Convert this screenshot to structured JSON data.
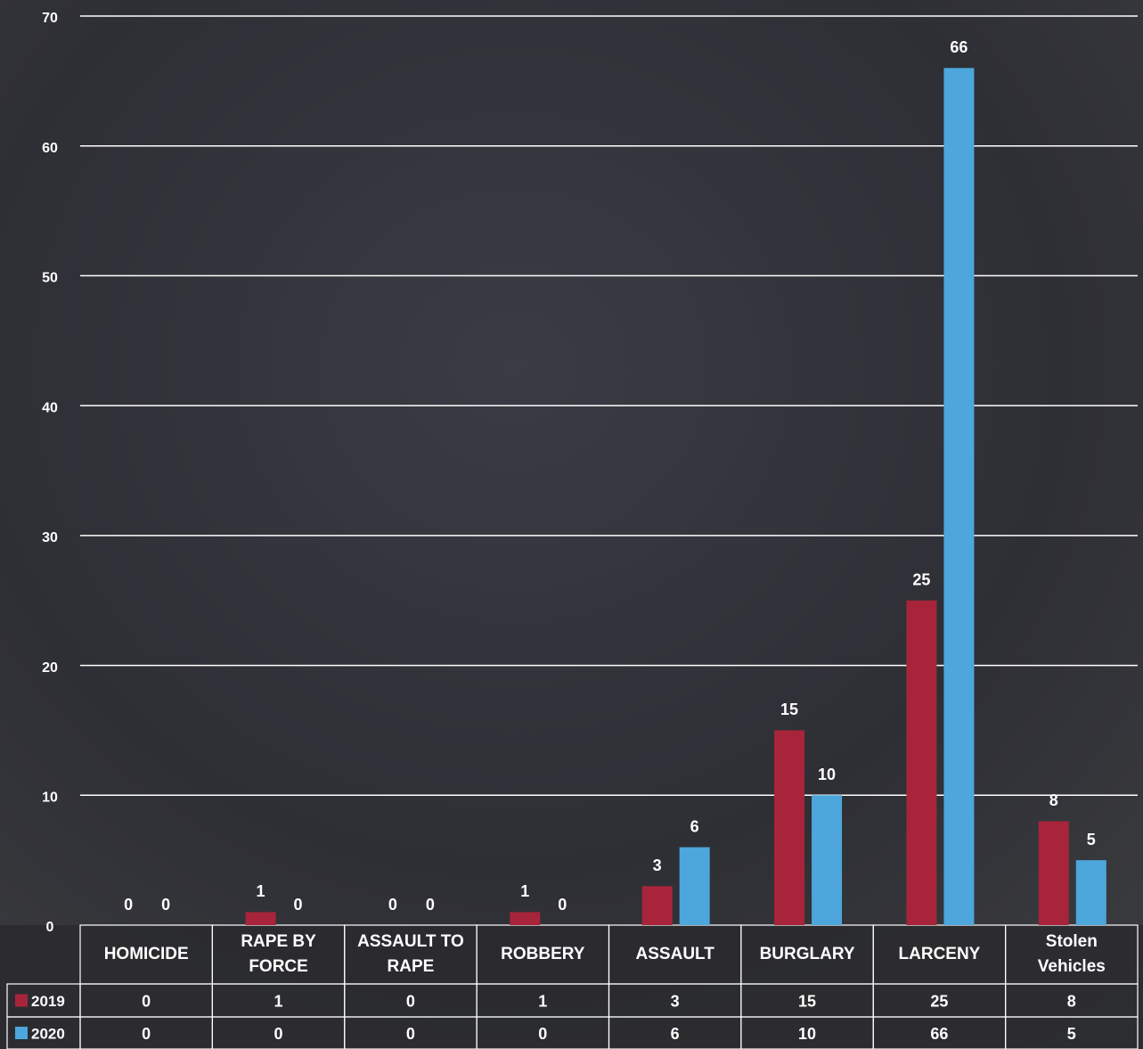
{
  "chart_data": {
    "type": "bar",
    "categories": [
      "HOMICIDE",
      "RAPE BY FORCE",
      "ASSAULT TO RAPE",
      "ROBBERY",
      "ASSAULT",
      "BURGLARY",
      "LARCENY",
      "Stolen Vehicles"
    ],
    "series": [
      {
        "name": "2019",
        "color": "#a8243a",
        "values": [
          0,
          1,
          0,
          1,
          3,
          15,
          25,
          8
        ]
      },
      {
        "name": "2020",
        "color": "#4da6dc",
        "values": [
          0,
          0,
          0,
          0,
          6,
          10,
          66,
          5
        ]
      }
    ],
    "ylim": [
      0,
      70
    ],
    "yticks": [
      0,
      10,
      20,
      30,
      40,
      50,
      60,
      70
    ],
    "grid": true
  }
}
